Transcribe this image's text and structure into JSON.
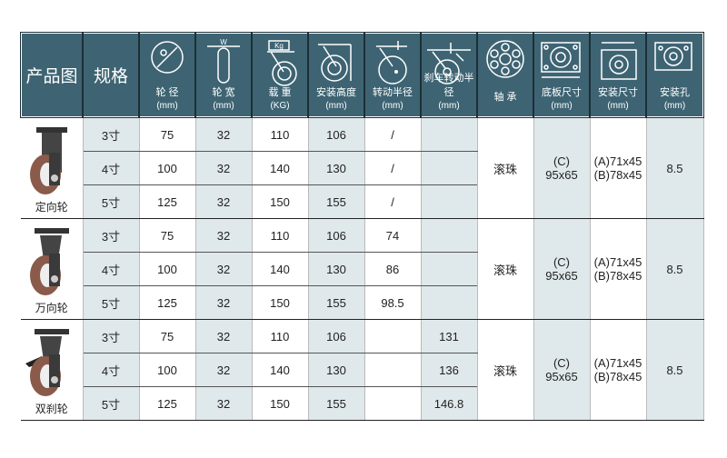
{
  "header": [
    {
      "label": "产品图",
      "big": true
    },
    {
      "label": "规格",
      "big": true
    },
    {
      "label": "轮 径",
      "unit": "(mm)",
      "icon": "wheel-diameter-icon"
    },
    {
      "label": "轮 宽",
      "unit": "(mm)",
      "icon": "wheel-width-icon"
    },
    {
      "label": "载 重",
      "unit": "(KG)",
      "icon": "load-kg-icon"
    },
    {
      "label": "安装高度",
      "unit": "(mm)",
      "icon": "mount-height-icon"
    },
    {
      "label": "转动半径",
      "unit": "(mm)",
      "icon": "swivel-radius-icon"
    },
    {
      "label": "刹车转动半径",
      "unit": "(mm)",
      "icon": "brake-swivel-radius-icon"
    },
    {
      "label": "轴 承",
      "unit": "",
      "icon": "bearing-icon"
    },
    {
      "label": "底板尺寸",
      "unit": "(mm)",
      "icon": "base-plate-icon"
    },
    {
      "label": "安装尺寸",
      "unit": "(mm)",
      "icon": "mount-size-icon"
    },
    {
      "label": "安装孔",
      "unit": "(mm)",
      "icon": "mount-hole-icon"
    }
  ],
  "header_icon_labels": {
    "width": "W",
    "load": "Kg"
  },
  "groups": [
    {
      "name": "定向轮",
      "type": "fixed",
      "bearing": "滚珠",
      "base": "(C)\n95x65",
      "mount": "(A)71x45\n(B)78x45",
      "hole": "8.5",
      "rows": [
        [
          "3寸",
          "75",
          "32",
          "110",
          "106",
          "/",
          ""
        ],
        [
          "4寸",
          "100",
          "32",
          "140",
          "130",
          "/",
          ""
        ],
        [
          "5寸",
          "125",
          "32",
          "150",
          "155",
          "/",
          ""
        ]
      ]
    },
    {
      "name": "万向轮",
      "type": "swivel",
      "bearing": "滚珠",
      "base": "(C)\n95x65",
      "mount": "(A)71x45\n(B)78x45",
      "hole": "8.5",
      "rows": [
        [
          "3寸",
          "75",
          "32",
          "110",
          "106",
          "74",
          ""
        ],
        [
          "4寸",
          "100",
          "32",
          "140",
          "130",
          "86",
          ""
        ],
        [
          "5寸",
          "125",
          "32",
          "150",
          "155",
          "98.5",
          ""
        ]
      ]
    },
    {
      "name": "双刹轮",
      "type": "brake",
      "bearing": "滚珠",
      "base": "(C)\n95x65",
      "mount": "(A)71x45\n(B)78x45",
      "hole": "8.5",
      "rows": [
        [
          "3寸",
          "75",
          "32",
          "110",
          "106",
          "",
          "131"
        ],
        [
          "4寸",
          "100",
          "32",
          "140",
          "130",
          "",
          "136"
        ],
        [
          "5寸",
          "125",
          "32",
          "150",
          "155",
          "",
          "146.8"
        ]
      ]
    }
  ],
  "colors": {
    "header": "#3e6473",
    "shade": "#dfe8eb",
    "wheel": "#8a5a4a"
  }
}
